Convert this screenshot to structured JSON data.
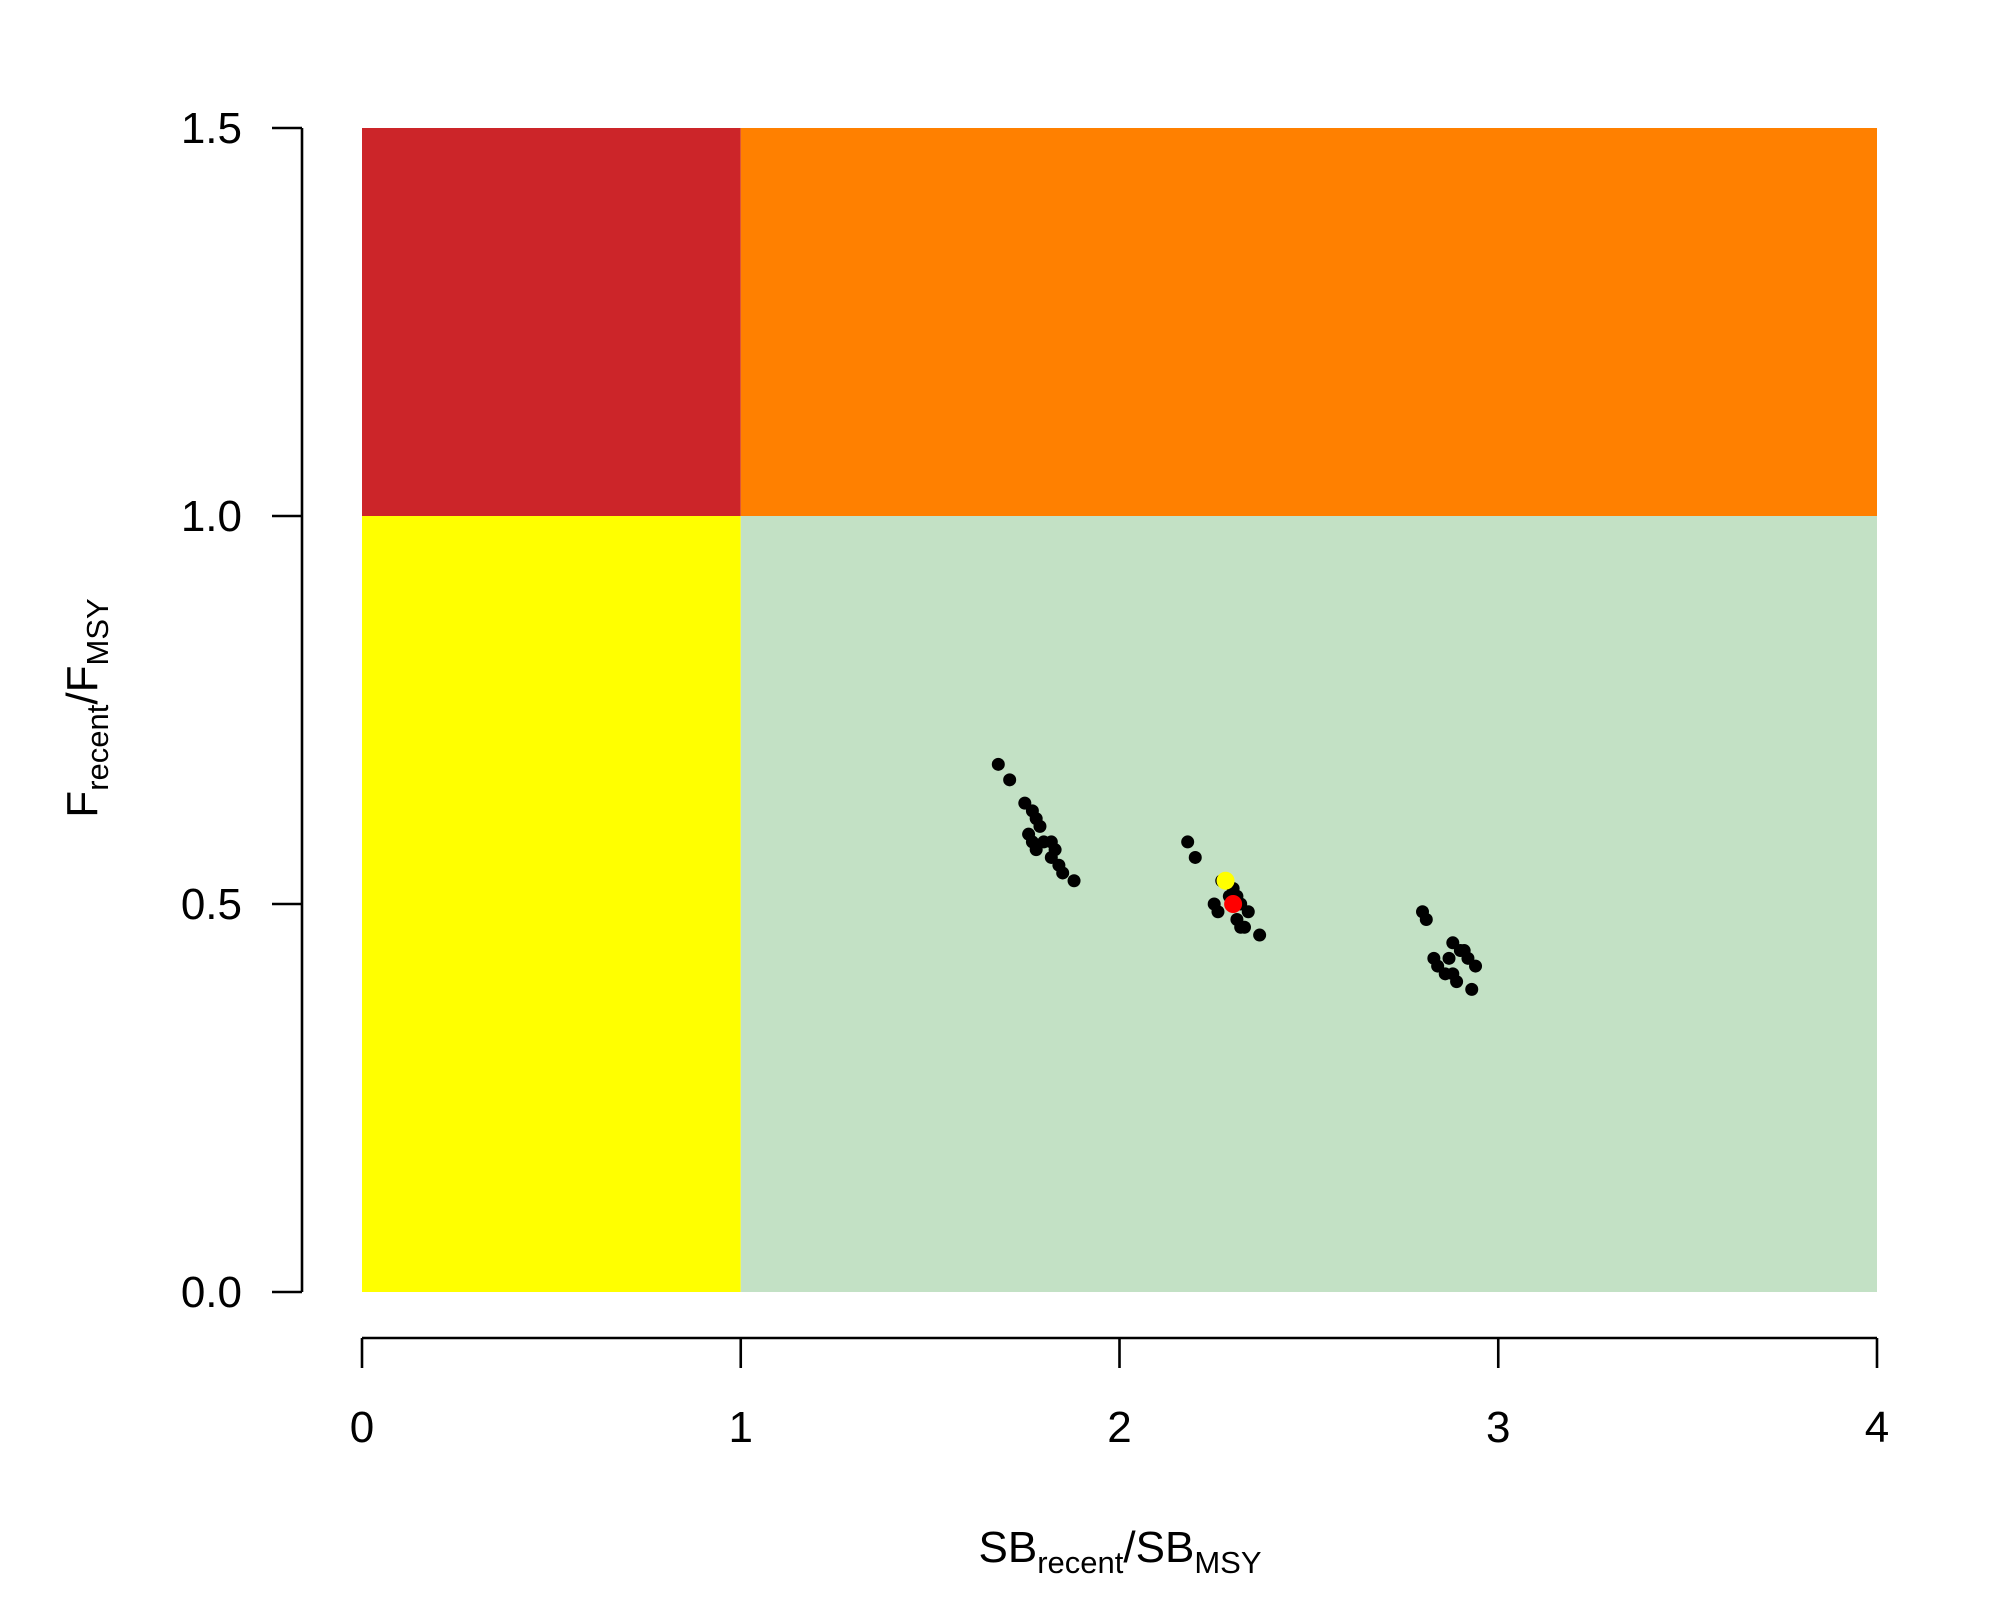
{
  "chart_data": {
    "type": "scatter",
    "title": "",
    "xlabel": {
      "main1": "SB",
      "sub1": "recent",
      "sep": "/",
      "main2": "SB",
      "sub2": "MSY"
    },
    "ylabel": {
      "main1": "F",
      "sub1": "recent",
      "sep": "/",
      "main2": "F",
      "sub2": "MSY"
    },
    "xlim": [
      0,
      4
    ],
    "ylim": [
      0,
      1.5
    ],
    "x_ticks": [
      0,
      1,
      2,
      3,
      4
    ],
    "x_tick_labels": [
      "0",
      "1",
      "2",
      "3",
      "4"
    ],
    "y_ticks": [
      0,
      0.5,
      1.0,
      1.5
    ],
    "y_tick_labels": [
      "0.0",
      "0.5",
      "1.0",
      "1.5"
    ],
    "grid": false,
    "legend": "none",
    "zones": [
      {
        "name": "overfished-and-overfishing",
        "x": [
          0,
          1
        ],
        "y": [
          1,
          1.5
        ],
        "color": "#CC2529"
      },
      {
        "name": "overfishing",
        "x": [
          1,
          4
        ],
        "y": [
          1,
          1.5
        ],
        "color": "#FF8000"
      },
      {
        "name": "overfished",
        "x": [
          0,
          1
        ],
        "y": [
          0,
          1
        ],
        "color": "#FFFF00"
      },
      {
        "name": "healthy",
        "x": [
          1,
          4
        ],
        "y": [
          0,
          1
        ],
        "color": "#C3E1C5"
      }
    ],
    "series": [
      {
        "color": "#000000",
        "points": [
          [
            1.68,
            0.68
          ],
          [
            1.71,
            0.66
          ],
          [
            1.75,
            0.63
          ],
          [
            1.77,
            0.62
          ],
          [
            1.78,
            0.61
          ],
          [
            1.79,
            0.6
          ],
          [
            1.76,
            0.59
          ],
          [
            1.77,
            0.58
          ],
          [
            1.78,
            0.57
          ],
          [
            1.8,
            0.58
          ],
          [
            1.82,
            0.58
          ],
          [
            1.83,
            0.57
          ],
          [
            1.82,
            0.56
          ],
          [
            1.84,
            0.55
          ],
          [
            1.85,
            0.54
          ],
          [
            1.88,
            0.53
          ],
          [
            2.18,
            0.58
          ],
          [
            2.2,
            0.56
          ],
          [
            2.27,
            0.53
          ],
          [
            2.25,
            0.5
          ],
          [
            2.26,
            0.49
          ],
          [
            2.29,
            0.51
          ],
          [
            2.3,
            0.52
          ],
          [
            2.31,
            0.51
          ],
          [
            2.32,
            0.5
          ],
          [
            2.31,
            0.48
          ],
          [
            2.32,
            0.47
          ],
          [
            2.34,
            0.49
          ],
          [
            2.33,
            0.47
          ],
          [
            2.37,
            0.46
          ],
          [
            2.8,
            0.49
          ],
          [
            2.81,
            0.48
          ],
          [
            2.83,
            0.43
          ],
          [
            2.84,
            0.42
          ],
          [
            2.86,
            0.41
          ],
          [
            2.87,
            0.43
          ],
          [
            2.88,
            0.45
          ],
          [
            2.88,
            0.41
          ],
          [
            2.89,
            0.4
          ],
          [
            2.9,
            0.44
          ],
          [
            2.91,
            0.44
          ],
          [
            2.92,
            0.43
          ],
          [
            2.93,
            0.39
          ],
          [
            2.94,
            0.42
          ]
        ]
      },
      {
        "color": "#FFFF00",
        "points": [
          [
            2.28,
            0.53
          ]
        ]
      },
      {
        "color": "#FF0000",
        "points": [
          [
            2.3,
            0.5
          ]
        ]
      }
    ]
  }
}
